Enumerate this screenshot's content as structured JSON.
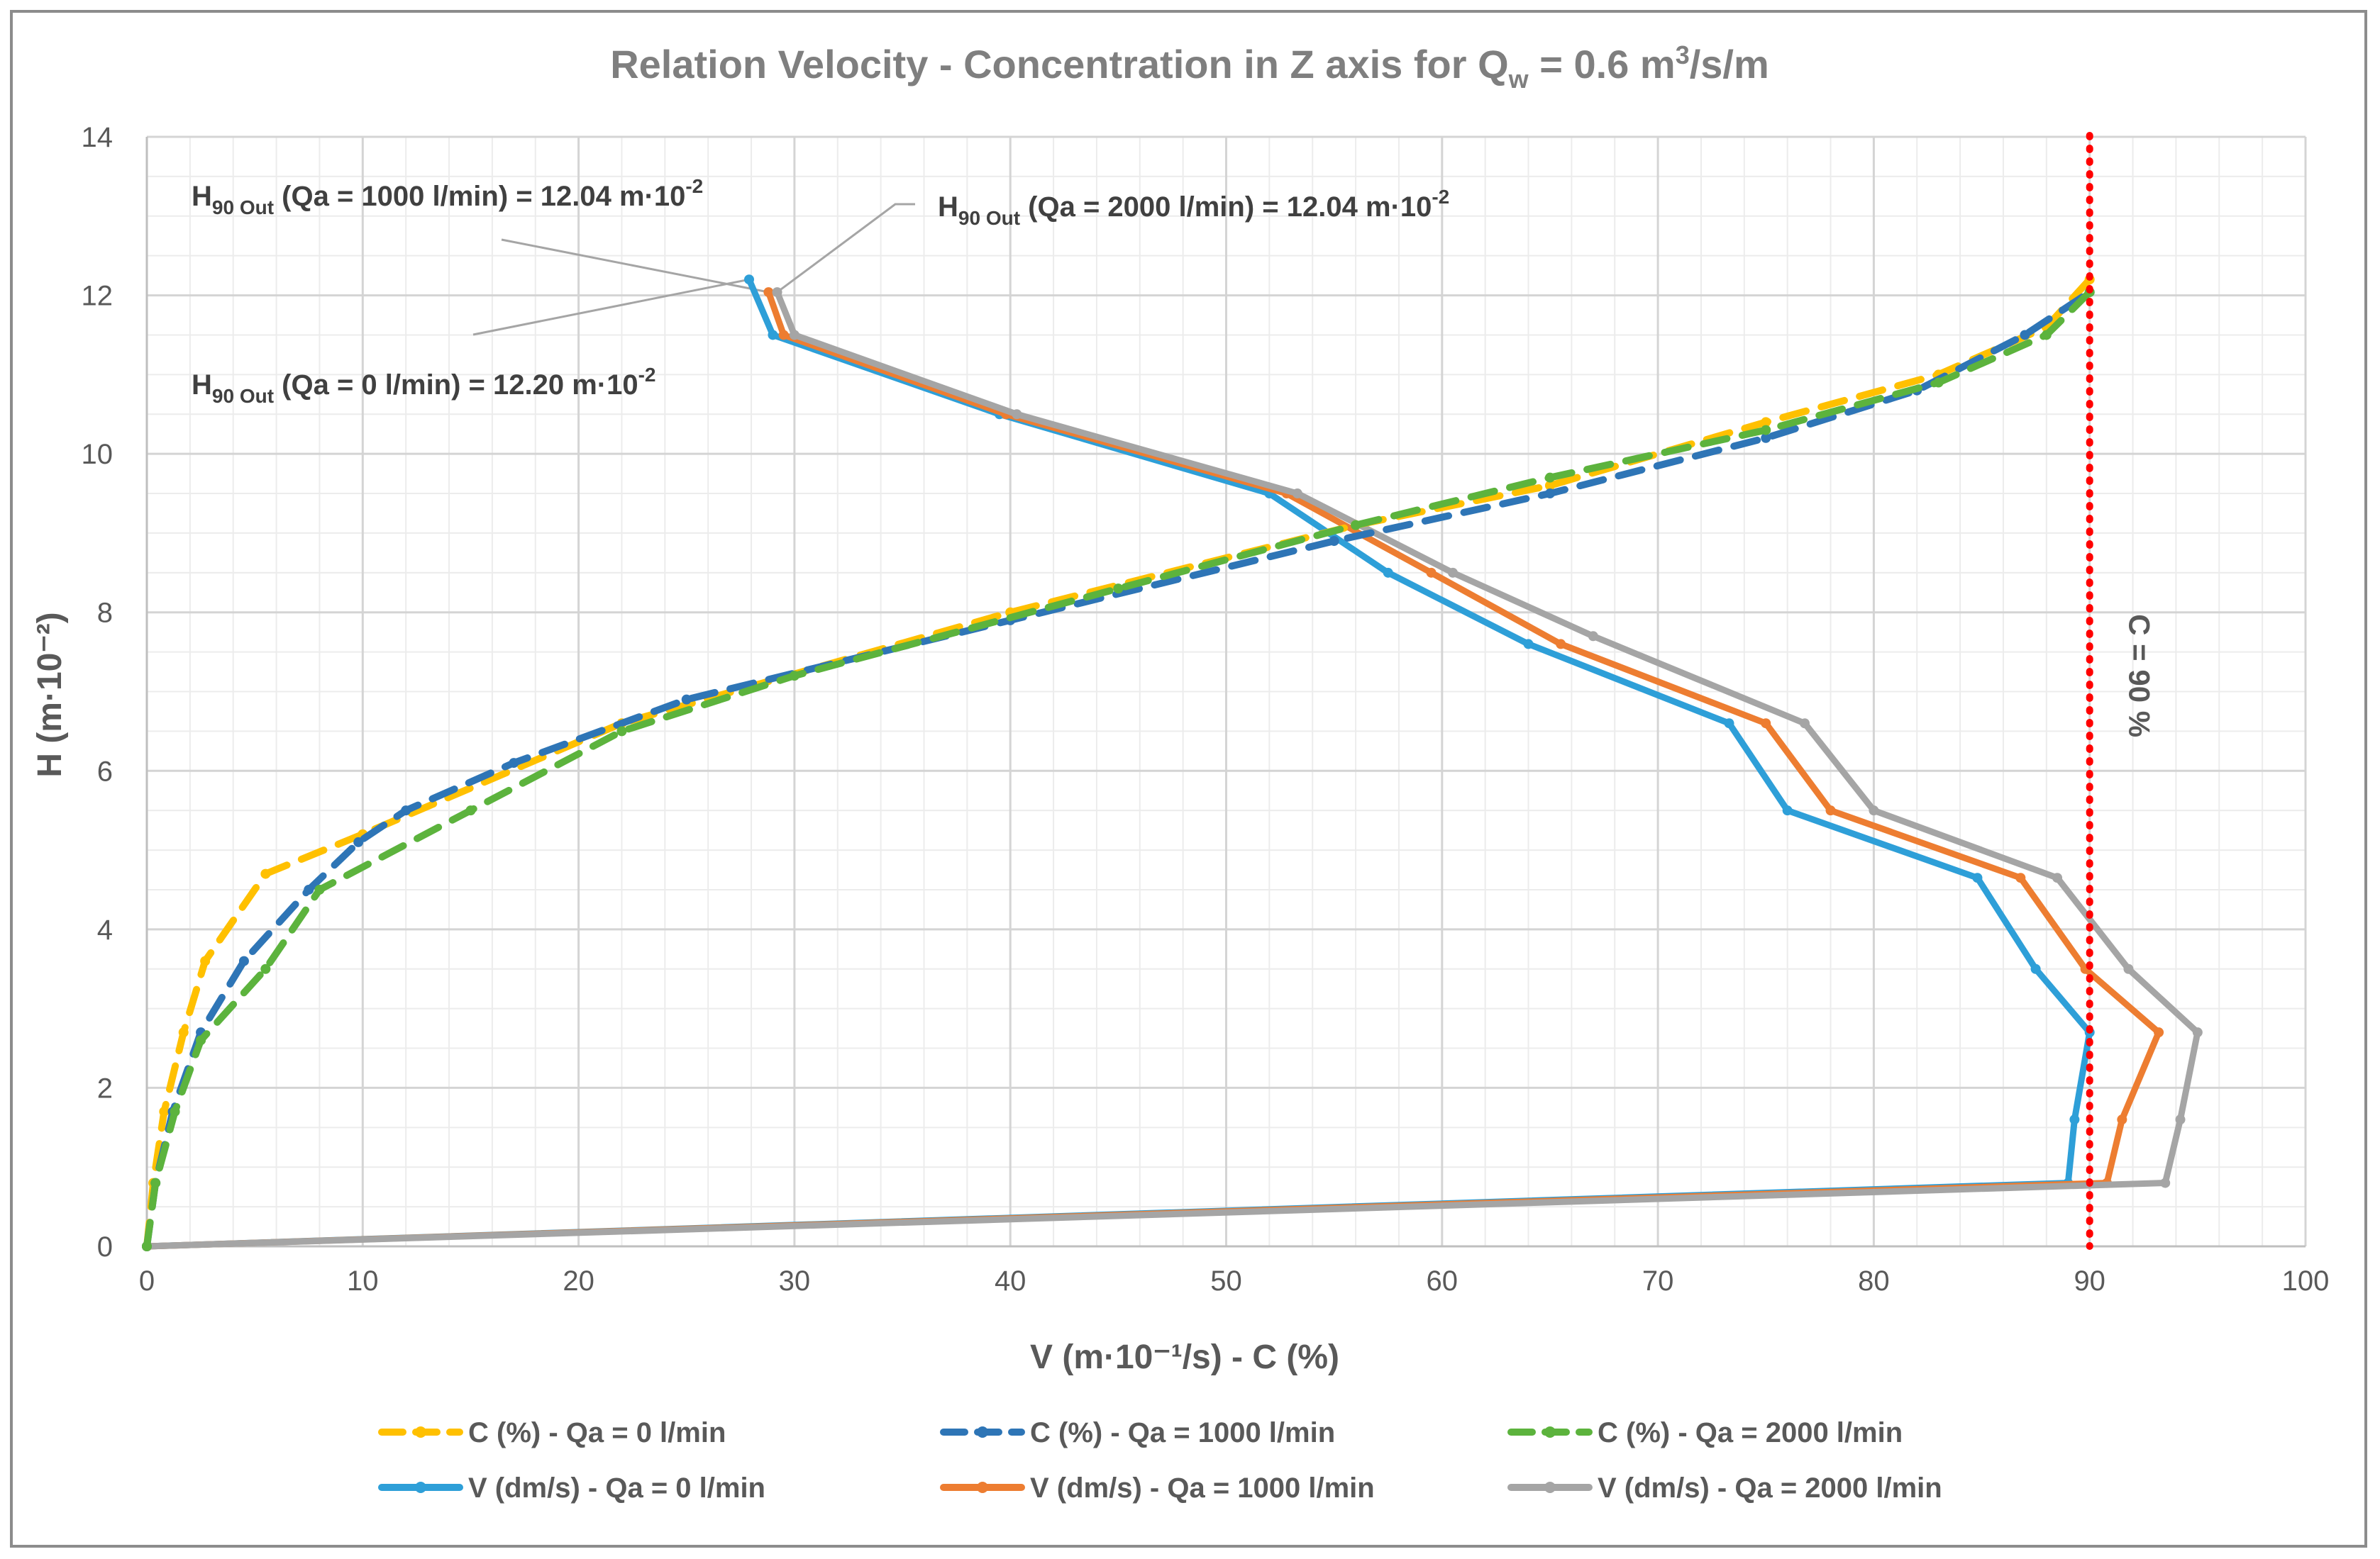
{
  "chart_data": {
    "type": "line",
    "title": {
      "main": "Relation Velocity - Concentration in Z axis for Q",
      "sub": "w",
      "mid": " = 0.6 m",
      "sup": "3",
      "end": "/s/m"
    },
    "xlabel": "V (m·10⁻¹/s) - C (%)",
    "ylabel": "H (m·10⁻²)",
    "xlim": [
      0,
      100
    ],
    "ylim": [
      0,
      14
    ],
    "x_ticks": [
      "0",
      "10",
      "20",
      "30",
      "40",
      "50",
      "60",
      "70",
      "80",
      "90",
      "100"
    ],
    "y_ticks": [
      "0",
      "2",
      "4",
      "6",
      "8",
      "10",
      "12",
      "14"
    ],
    "grid": "major and minor",
    "reference_line": {
      "x": 90,
      "label": "C = 90 %",
      "color": "#ff0000"
    },
    "annotations": [
      {
        "pre": "H",
        "sub": "90 Out",
        "post": " (Qa = 1000 l/min) = 12.04 m·10",
        "sup": "-2"
      },
      {
        "pre": "H",
        "sub": "90 Out",
        "post": " (Qa = 2000 l/min) = 12.04 m·10",
        "sup": "-2"
      },
      {
        "pre": "H",
        "sub": "90 Out",
        "post": " (Qa = 0 l/min) = 12.20 m·10",
        "sup": "-2"
      }
    ],
    "series": [
      {
        "name": "C (%) - Qa = 0 l/min",
        "color": "#ffc000",
        "dash": true,
        "points": [
          [
            0,
            0
          ],
          [
            0.3,
            0.8
          ],
          [
            0.8,
            1.7
          ],
          [
            1.7,
            2.7
          ],
          [
            2.7,
            3.6
          ],
          [
            5.5,
            4.7
          ],
          [
            10,
            5.2
          ],
          [
            22,
            6.6
          ],
          [
            40,
            8.0
          ],
          [
            56,
            9.1
          ],
          [
            65,
            9.6
          ],
          [
            75,
            10.4
          ],
          [
            83,
            11.0
          ],
          [
            88,
            11.6
          ],
          [
            90,
            12.2
          ]
        ]
      },
      {
        "name": "C (%) - Qa = 1000 l/min",
        "color": "#2e75b6",
        "dash": true,
        "points": [
          [
            0,
            0
          ],
          [
            0.4,
            0.8
          ],
          [
            1.2,
            1.7
          ],
          [
            2.5,
            2.7
          ],
          [
            4.5,
            3.6
          ],
          [
            7.5,
            4.5
          ],
          [
            9.8,
            5.1
          ],
          [
            12,
            5.5
          ],
          [
            17,
            6.1
          ],
          [
            25,
            6.9
          ],
          [
            40,
            7.9
          ],
          [
            55,
            8.9
          ],
          [
            65,
            9.5
          ],
          [
            75,
            10.2
          ],
          [
            82,
            10.8
          ],
          [
            87,
            11.5
          ],
          [
            90,
            12.04
          ]
        ]
      },
      {
        "name": "C (%) - Qa = 2000 l/min",
        "color": "#5cb33d",
        "dash": true,
        "points": [
          [
            0,
            0
          ],
          [
            0.4,
            0.8
          ],
          [
            1.3,
            1.7
          ],
          [
            2.5,
            2.6
          ],
          [
            5.5,
            3.5
          ],
          [
            8,
            4.5
          ],
          [
            15,
            5.5
          ],
          [
            22,
            6.5
          ],
          [
            30,
            7.2
          ],
          [
            45,
            8.3
          ],
          [
            56,
            9.1
          ],
          [
            65,
            9.7
          ],
          [
            75,
            10.3
          ],
          [
            83,
            10.9
          ],
          [
            88,
            11.5
          ],
          [
            90,
            12.04
          ]
        ]
      },
      {
        "name": "V (dm/s) - Qa = 0 l/min",
        "color": "#2e9fd8",
        "dash": false,
        "points": [
          [
            0,
            0
          ],
          [
            89,
            0.8
          ],
          [
            89.3,
            1.6
          ],
          [
            90,
            2.7
          ],
          [
            87.5,
            3.5
          ],
          [
            84.8,
            4.65
          ],
          [
            76,
            5.5
          ],
          [
            73.3,
            6.6
          ],
          [
            64,
            7.6
          ],
          [
            57.5,
            8.5
          ],
          [
            52,
            9.5
          ],
          [
            39.5,
            10.5
          ],
          [
            29,
            11.5
          ],
          [
            27.9,
            12.2
          ]
        ]
      },
      {
        "name": "V (dm/s) - Qa = 1000 l/min",
        "color": "#ed7d31",
        "dash": false,
        "points": [
          [
            0,
            0
          ],
          [
            90.8,
            0.8
          ],
          [
            91.5,
            1.6
          ],
          [
            93.2,
            2.7
          ],
          [
            89.8,
            3.5
          ],
          [
            86.8,
            4.65
          ],
          [
            78,
            5.5
          ],
          [
            75,
            6.6
          ],
          [
            65.5,
            7.6
          ],
          [
            59.5,
            8.5
          ],
          [
            52.8,
            9.5
          ],
          [
            39.8,
            10.5
          ],
          [
            29.5,
            11.5
          ],
          [
            28.8,
            12.04
          ]
        ]
      },
      {
        "name": "V (dm/s) - Qa = 2000 l/min",
        "color": "#a5a5a5",
        "dash": false,
        "points": [
          [
            0,
            0
          ],
          [
            93.5,
            0.8
          ],
          [
            94.2,
            1.6
          ],
          [
            95,
            2.7
          ],
          [
            91.8,
            3.5
          ],
          [
            88.5,
            4.65
          ],
          [
            80,
            5.5
          ],
          [
            76.8,
            6.6
          ],
          [
            67,
            7.7
          ],
          [
            60.5,
            8.5
          ],
          [
            53.3,
            9.5
          ],
          [
            40.3,
            10.5
          ],
          [
            30,
            11.5
          ],
          [
            29.2,
            12.04
          ]
        ]
      }
    ]
  }
}
